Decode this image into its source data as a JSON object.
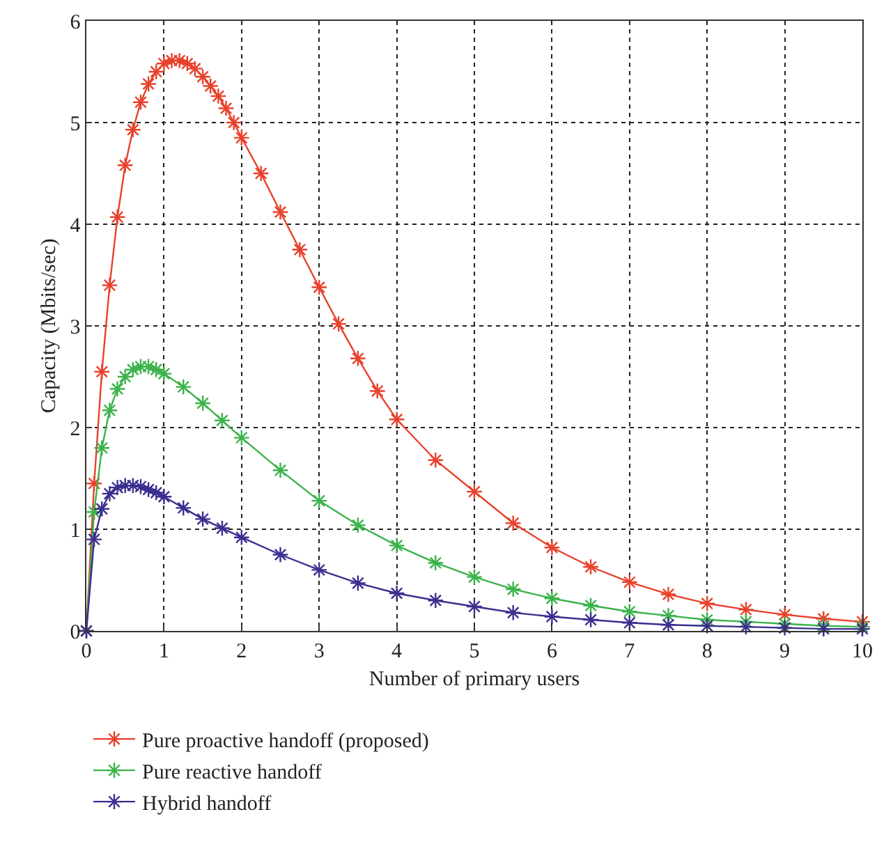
{
  "chart_data": {
    "type": "line",
    "xlabel": "Number of primary users",
    "ylabel": "Capacity (Mbits/sec)",
    "xlim": [
      0,
      10
    ],
    "xticks": [
      0,
      1,
      2,
      3,
      4,
      5,
      6,
      7,
      8,
      9,
      10
    ],
    "ylim": [
      0,
      6
    ],
    "yticks": [
      0,
      1,
      2,
      3,
      4,
      5,
      6
    ],
    "grid": true,
    "legend": "bottom",
    "marker": "cross",
    "line_style": "solid",
    "series": [
      {
        "name": "Pure proactive handoff (proposed)",
        "color": "#e8412b",
        "x": [
          0,
          0.1,
          0.2,
          0.3,
          0.4,
          0.5,
          0.6,
          0.7,
          0.8,
          0.9,
          1.0,
          1.1,
          1.2,
          1.3,
          1.4,
          1.5,
          1.6,
          1.7,
          1.8,
          1.9,
          2.0,
          2.25,
          2.5,
          2.75,
          3.0,
          3.25,
          3.5,
          3.75,
          4.0,
          4.5,
          5.0,
          5.5,
          6.0,
          6.5,
          7.0,
          7.5,
          8.0,
          8.5,
          9.0,
          9.5,
          10.0
        ],
        "values": [
          0,
          1.45,
          2.55,
          3.4,
          4.07,
          4.58,
          4.93,
          5.2,
          5.38,
          5.5,
          5.58,
          5.61,
          5.61,
          5.58,
          5.53,
          5.45,
          5.36,
          5.26,
          5.14,
          5.0,
          4.85,
          4.5,
          4.12,
          3.75,
          3.38,
          3.02,
          2.68,
          2.36,
          2.08,
          1.68,
          1.37,
          1.06,
          0.82,
          0.63,
          0.48,
          0.36,
          0.27,
          0.21,
          0.16,
          0.12,
          0.09
        ]
      },
      {
        "name": "Pure reactive handoff",
        "color": "#3bb34a",
        "x": [
          0,
          0.1,
          0.2,
          0.3,
          0.4,
          0.5,
          0.6,
          0.7,
          0.8,
          0.9,
          1.0,
          1.25,
          1.5,
          1.75,
          2.0,
          2.5,
          3.0,
          3.5,
          4.0,
          4.5,
          5.0,
          5.5,
          6.0,
          6.5,
          7.0,
          7.5,
          8.0,
          8.5,
          9.0,
          9.5,
          10.0
        ],
        "values": [
          0,
          1.17,
          1.8,
          2.17,
          2.38,
          2.5,
          2.57,
          2.6,
          2.6,
          2.57,
          2.53,
          2.4,
          2.24,
          2.07,
          1.9,
          1.58,
          1.28,
          1.04,
          0.84,
          0.67,
          0.53,
          0.41,
          0.32,
          0.25,
          0.19,
          0.15,
          0.11,
          0.09,
          0.07,
          0.05,
          0.04
        ]
      },
      {
        "name": "Hybrid handoff",
        "color": "#3a2f8f",
        "x": [
          0,
          0.1,
          0.2,
          0.3,
          0.4,
          0.5,
          0.6,
          0.7,
          0.8,
          0.9,
          1.0,
          1.25,
          1.5,
          1.75,
          2.0,
          2.5,
          3.0,
          3.5,
          4.0,
          4.5,
          5.0,
          5.5,
          6.0,
          6.5,
          7.0,
          7.5,
          8.0,
          8.5,
          9.0,
          9.5,
          10.0
        ],
        "values": [
          0,
          0.9,
          1.2,
          1.35,
          1.41,
          1.43,
          1.43,
          1.42,
          1.39,
          1.36,
          1.32,
          1.21,
          1.1,
          1.01,
          0.92,
          0.75,
          0.6,
          0.47,
          0.37,
          0.3,
          0.24,
          0.18,
          0.14,
          0.11,
          0.08,
          0.06,
          0.05,
          0.04,
          0.03,
          0.02,
          0.02
        ]
      }
    ]
  }
}
